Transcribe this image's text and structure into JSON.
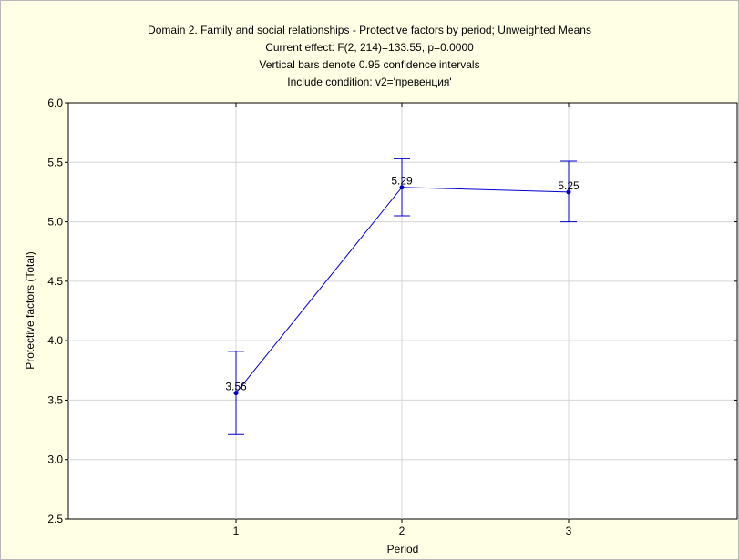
{
  "chart_data": {
    "type": "line",
    "title": [
      "Domain 2. Family and social relationships - Protective factors by period; Unweighted Means",
      "Current effect: F(2, 214)=133.55, p=0.0000",
      "Vertical bars denote 0.95 confidence intervals",
      "Include condition: v2='превенция'"
    ],
    "xlabel": "Period",
    "ylabel": "Protective factors (Total)",
    "categories": [
      "1",
      "2",
      "3"
    ],
    "series": [
      {
        "values": [
          3.56,
          5.29,
          5.25
        ],
        "ci_lower": [
          3.21,
          5.05,
          5.0
        ],
        "ci_upper": [
          3.91,
          5.53,
          5.51
        ],
        "labels": [
          "3.56",
          "5.29",
          "5.25"
        ]
      }
    ],
    "ylim": [
      2.5,
      6.0
    ],
    "yticks": [
      "2.5",
      "3.0",
      "3.5",
      "4.0",
      "4.5",
      "5.0",
      "5.5",
      "6.0"
    ],
    "grid": true,
    "colors": {
      "series": "#0000cc",
      "background": "#ffffe6",
      "plot_background": "#ffffff",
      "grid": "#d4d4d4"
    }
  }
}
